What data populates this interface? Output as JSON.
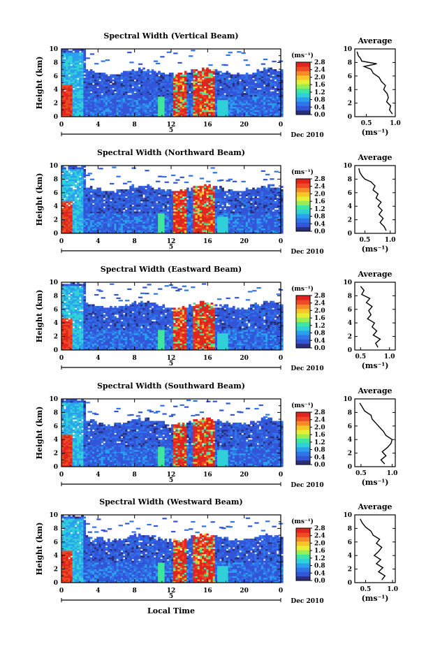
{
  "chart_data": [
    {
      "type": "heatmap",
      "title": "Spectral Width (Vertical Beam)",
      "ylabel": "Height (km)",
      "xlim": [
        0,
        24
      ],
      "ylim": [
        0,
        10
      ],
      "xticks": [
        "0",
        "4",
        "8",
        "12",
        "16",
        "20",
        "0"
      ],
      "yticks": [
        "0",
        "2",
        "4",
        "6",
        "8",
        "10"
      ],
      "date_marker": "5",
      "date_label": "Dec 2010",
      "colorbar": {
        "unit": "(ms⁻¹)",
        "range": [
          0,
          2.8
        ],
        "ticks": [
          "0.0",
          "0.4",
          "0.8",
          "1.2",
          "1.6",
          "2.0",
          "2.4",
          "2.8"
        ]
      },
      "profile": {
        "title": "Average",
        "xlabel": "(ms⁻¹)",
        "xlim": [
          0.3,
          1.0
        ],
        "xticks": [
          "0.5",
          "1.0"
        ],
        "ylim": [
          0,
          10
        ],
        "yticks": [
          "0",
          "2",
          "4",
          "6",
          "8",
          "10"
        ],
        "height": [
          0.4,
          1.0,
          1.6,
          2.2,
          2.8,
          3.4,
          4.0,
          4.6,
          5.2,
          5.8,
          6.4,
          7.0,
          7.4,
          7.8,
          8.2,
          8.6,
          9.0,
          9.6
        ],
        "value": [
          0.95,
          0.9,
          0.92,
          0.85,
          0.88,
          0.86,
          0.8,
          0.83,
          0.76,
          0.72,
          0.62,
          0.58,
          0.46,
          0.68,
          0.42,
          0.4,
          0.36,
          0.34
        ]
      }
    },
    {
      "type": "heatmap",
      "title": "Spectral Width (Northward Beam)",
      "ylabel": "Height (km)",
      "xlim": [
        0,
        24
      ],
      "ylim": [
        0,
        10
      ],
      "xticks": [
        "0",
        "4",
        "8",
        "12",
        "16",
        "20",
        "0"
      ],
      "yticks": [
        "0",
        "2",
        "4",
        "6",
        "8",
        "10"
      ],
      "date_marker": "5",
      "date_label": "Dec 2010",
      "colorbar": {
        "unit": "(ms⁻¹)",
        "range": [
          0,
          2.8
        ],
        "ticks": [
          "0.0",
          "0.4",
          "0.8",
          "1.2",
          "1.6",
          "2.0",
          "2.4",
          "2.8"
        ]
      },
      "profile": {
        "title": "Average",
        "xlabel": "(ms⁻¹)",
        "xlim": [
          0.3,
          1.1
        ],
        "xticks": [
          "0.5",
          "1.0"
        ],
        "ylim": [
          0,
          10
        ],
        "yticks": [
          "0",
          "2",
          "4",
          "6",
          "8",
          "10"
        ],
        "height": [
          0.4,
          1.0,
          1.6,
          2.2,
          2.8,
          3.4,
          4.0,
          4.6,
          5.2,
          5.8,
          6.4,
          7.0,
          7.6,
          8.0,
          8.4,
          9.0,
          9.6
        ],
        "value": [
          0.92,
          0.88,
          0.8,
          0.86,
          0.78,
          0.84,
          0.76,
          0.82,
          0.72,
          0.76,
          0.66,
          0.7,
          0.62,
          0.5,
          0.45,
          0.4,
          0.38
        ]
      }
    },
    {
      "type": "heatmap",
      "title": "Spectral Width (Eastward Beam)",
      "ylabel": "Height (km)",
      "xlim": [
        0,
        24
      ],
      "ylim": [
        0,
        10
      ],
      "xticks": [
        "0",
        "4",
        "8",
        "12",
        "16",
        "20",
        "0"
      ],
      "yticks": [
        "0",
        "2",
        "4",
        "6",
        "8",
        "10"
      ],
      "date_marker": "5",
      "date_label": "Dec 2010",
      "colorbar": {
        "unit": "(ms⁻¹)",
        "range": [
          0,
          2.8
        ],
        "ticks": [
          "0.0",
          "0.4",
          "0.8",
          "1.2",
          "1.6",
          "2.0",
          "2.4",
          "2.8"
        ]
      },
      "profile": {
        "title": "Average",
        "xlabel": "(ms⁻¹)",
        "xlim": [
          0.4,
          1.1
        ],
        "xticks": [
          "0.5",
          "1.0"
        ],
        "ylim": [
          0,
          10
        ],
        "yticks": [
          "0",
          "2",
          "4",
          "6",
          "8",
          "10"
        ],
        "height": [
          0.4,
          1.0,
          1.6,
          2.2,
          2.8,
          3.4,
          4.0,
          4.6,
          5.2,
          5.8,
          6.4,
          7.0,
          7.6,
          8.2,
          8.8,
          9.4
        ],
        "value": [
          0.8,
          0.76,
          0.84,
          0.72,
          0.78,
          0.7,
          0.74,
          0.62,
          0.68,
          0.64,
          0.7,
          0.6,
          0.66,
          0.52,
          0.56,
          0.5
        ]
      }
    },
    {
      "type": "heatmap",
      "title": "Spectral Width (Southward Beam)",
      "ylabel": "Height (km)",
      "xlim": [
        0,
        24
      ],
      "ylim": [
        0,
        10
      ],
      "xticks": [
        "0",
        "4",
        "8",
        "12",
        "16",
        "20",
        "0"
      ],
      "yticks": [
        "0",
        "2",
        "4",
        "6",
        "8",
        "10"
      ],
      "date_marker": "5",
      "date_label": "Dec 2010",
      "colorbar": {
        "unit": "(ms⁻¹)",
        "range": [
          0,
          2.8
        ],
        "ticks": [
          "0.0",
          "0.4",
          "0.8",
          "1.2",
          "1.6",
          "2.0",
          "2.4",
          "2.8"
        ]
      },
      "profile": {
        "title": "Average",
        "xlabel": "(ms⁻¹)",
        "xlim": [
          0.4,
          1.05
        ],
        "xticks": [
          "0.5",
          "1.0"
        ],
        "ylim": [
          0,
          10
        ],
        "yticks": [
          "0",
          "2",
          "4",
          "6",
          "8",
          "10"
        ],
        "height": [
          0.4,
          1.0,
          1.6,
          2.2,
          2.8,
          3.4,
          4.0,
          4.6,
          5.2,
          5.8,
          6.4,
          7.0,
          7.6,
          8.2,
          8.8,
          9.4
        ],
        "value": [
          0.88,
          0.82,
          0.9,
          0.84,
          0.92,
          0.98,
          1.0,
          0.9,
          0.86,
          0.8,
          0.74,
          0.68,
          0.66,
          0.56,
          0.52,
          0.48
        ]
      }
    },
    {
      "type": "heatmap",
      "title": "Spectral Width (Westward Beam)",
      "ylabel": "Height (km)",
      "xlim": [
        0,
        24
      ],
      "ylim": [
        0,
        10
      ],
      "xticks": [
        "0",
        "4",
        "8",
        "12",
        "16",
        "20",
        "0"
      ],
      "yticks": [
        "0",
        "2",
        "4",
        "6",
        "8",
        "10"
      ],
      "date_marker": "5",
      "date_label": "Dec 2010",
      "colorbar": {
        "unit": "(ms⁻¹)",
        "range": [
          0,
          2.8
        ],
        "ticks": [
          "0.0",
          "0.4",
          "0.8",
          "1.2",
          "1.6",
          "2.0",
          "2.4",
          "2.8"
        ]
      },
      "profile": {
        "title": "Average",
        "xlabel": "(ms⁻¹)",
        "xlim": [
          0.3,
          1.05
        ],
        "xticks": [
          "0.5",
          "1.0"
        ],
        "ylim": [
          0,
          10
        ],
        "yticks": [
          "0",
          "2",
          "4",
          "6",
          "8",
          "10"
        ],
        "height": [
          0.4,
          1.0,
          1.6,
          2.2,
          2.8,
          3.4,
          4.0,
          4.6,
          5.2,
          5.8,
          6.4,
          7.0,
          7.6,
          8.2,
          8.8,
          9.4
        ],
        "value": [
          0.8,
          0.86,
          0.74,
          0.82,
          0.7,
          0.78,
          0.66,
          0.74,
          0.8,
          0.7,
          0.76,
          0.64,
          0.6,
          0.5,
          0.44,
          0.4
        ]
      }
    }
  ],
  "figure": {
    "xlabel": "Local Time"
  },
  "colors": {
    "scale": [
      "#2b2f7a",
      "#3355d8",
      "#2f74e8",
      "#2aa0ee",
      "#30d0d8",
      "#3ee6a0",
      "#9aee55",
      "#e6ee35",
      "#f6c52a",
      "#f68a28",
      "#ee4a24",
      "#e0251f"
    ],
    "background": "#ffffff",
    "axis": "#000000"
  }
}
